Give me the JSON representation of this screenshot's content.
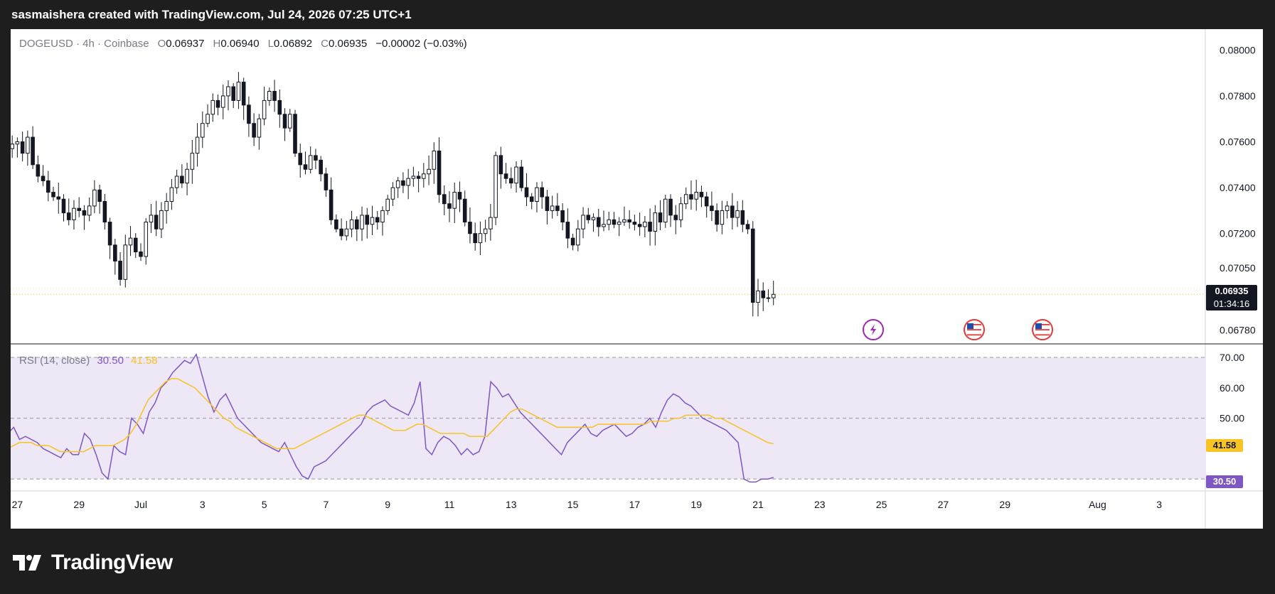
{
  "header": {
    "attribution": "sasmaishera created with TradingView.com, Jul 24, 2026 07:25 UTC+1"
  },
  "legend": {
    "symbol": "DOGEUSD · 4h · Coinbase",
    "open_label": "O",
    "open": "0.06937",
    "high_label": "H",
    "high": "0.06940",
    "low_label": "L",
    "low": "0.06892",
    "close_label": "C",
    "close": "0.06935",
    "change": "−0.00002 (−0.03%)"
  },
  "rsi_legend": {
    "label": "RSI (14, close)",
    "rsi": "30.50",
    "ma": "41.58"
  },
  "price_tag": {
    "price": "0.06935",
    "countdown": "01:34:16"
  },
  "rsi_tags": {
    "ma": "41.58",
    "rsi": "30.50"
  },
  "footer": {
    "brand": "TradingView",
    "logo_icon": "tradingview-logo-icon"
  },
  "event_icons": [
    "lightning-event-icon",
    "us-flag-event-icon",
    "us-flag-event-icon"
  ],
  "colors": {
    "candle": "#131722",
    "rsi_line": "#7e57c2",
    "rsi_ma": "#f7c325",
    "rsi_band": "#ede7f6",
    "price_tag_bg": "#131722",
    "rsi_ma_tag": "#f7c325",
    "rsi_tag": "#7e57c2"
  },
  "chart_data": [
    {
      "type": "candlestick",
      "price_axis": {
        "ticks": [
          "0.08000",
          "0.07800",
          "0.07600",
          "0.07400",
          "0.07200",
          "0.07050",
          "0.06780"
        ],
        "range": [
          0.0675,
          0.0806
        ]
      },
      "x_ticks": [
        "27",
        "29",
        "Jul",
        "3",
        "5",
        "7",
        "9",
        "11",
        "13",
        "15",
        "17",
        "19",
        "21",
        "23",
        "25",
        "27",
        "29",
        "Aug",
        "3"
      ],
      "x_tick_days": [
        -4,
        -2,
        0,
        2,
        4,
        6,
        8,
        10,
        12,
        14,
        16,
        18,
        20,
        22,
        24,
        26,
        28,
        31,
        33
      ],
      "last_price": 0.06935,
      "candles_per_day": 6,
      "start_day": -4.5,
      "closes": [
        0.0758,
        0.0757,
        0.0759,
        0.076,
        0.0755,
        0.0762,
        0.075,
        0.0745,
        0.0743,
        0.0738,
        0.0736,
        0.0735,
        0.0729,
        0.0726,
        0.0731,
        0.073,
        0.0728,
        0.0732,
        0.0739,
        0.0734,
        0.0725,
        0.0715,
        0.0708,
        0.07,
        0.0715,
        0.0718,
        0.0712,
        0.071,
        0.0725,
        0.0728,
        0.0722,
        0.073,
        0.0734,
        0.074,
        0.0745,
        0.0742,
        0.0748,
        0.0755,
        0.0762,
        0.0768,
        0.0772,
        0.0778,
        0.0775,
        0.078,
        0.0784,
        0.0778,
        0.0786,
        0.0776,
        0.0768,
        0.0762,
        0.077,
        0.0778,
        0.0782,
        0.0778,
        0.0772,
        0.0766,
        0.0772,
        0.0755,
        0.075,
        0.0748,
        0.0754,
        0.0752,
        0.0746,
        0.0739,
        0.0726,
        0.0722,
        0.0719,
        0.0722,
        0.0726,
        0.0722,
        0.0728,
        0.0724,
        0.0727,
        0.0725,
        0.073,
        0.0735,
        0.074,
        0.0743,
        0.0741,
        0.0744,
        0.0745,
        0.0744,
        0.0746,
        0.0748,
        0.0756,
        0.0737,
        0.0733,
        0.0731,
        0.0738,
        0.0735,
        0.0725,
        0.072,
        0.0716,
        0.072,
        0.0722,
        0.0727,
        0.0754,
        0.0746,
        0.0744,
        0.0742,
        0.0749,
        0.074,
        0.0736,
        0.0734,
        0.074,
        0.0736,
        0.073,
        0.0732,
        0.073,
        0.0725,
        0.0718,
        0.0715,
        0.0722,
        0.0728,
        0.0726,
        0.0727,
        0.0723,
        0.0724,
        0.0726,
        0.0724,
        0.0725,
        0.0726,
        0.0725,
        0.0724,
        0.0723,
        0.0725,
        0.0721,
        0.0729,
        0.0725,
        0.0735,
        0.0728,
        0.0726,
        0.0733,
        0.0737,
        0.0735,
        0.0738,
        0.0736,
        0.0732,
        0.073,
        0.0724,
        0.073,
        0.0732,
        0.0727,
        0.073,
        0.0724,
        0.0722,
        0.069,
        0.0695,
        0.0692,
        0.0692,
        0.06935
      ]
    },
    {
      "type": "line",
      "title": "RSI (14, close)",
      "y_ticks": [
        "70.00",
        "60.00",
        "50.00"
      ],
      "bands": [
        70,
        50,
        30
      ],
      "range": [
        27.0,
        73.5
      ],
      "series": [
        {
          "name": "RSI",
          "values": [
            46,
            45,
            47,
            43,
            44,
            43,
            42,
            40,
            39,
            38,
            37,
            40,
            38,
            38,
            45,
            43,
            38,
            32,
            30,
            41,
            39,
            38,
            50,
            48,
            45,
            52,
            55,
            60,
            62,
            65,
            67,
            69,
            68,
            71,
            64,
            57,
            52,
            56,
            58,
            54,
            50,
            48,
            46,
            44,
            42,
            41,
            40,
            39,
            42,
            38,
            34,
            31,
            30,
            34,
            35,
            36,
            38,
            40,
            42,
            44,
            46,
            48,
            52,
            54,
            55,
            56,
            54,
            53,
            52,
            51,
            55,
            62,
            40,
            38,
            42,
            44,
            43,
            41,
            38,
            40,
            38,
            39,
            44,
            62,
            60,
            57,
            58,
            55,
            52,
            50,
            48,
            46,
            44,
            42,
            40,
            38,
            42,
            44,
            46,
            48,
            45,
            44,
            46,
            47,
            48,
            46,
            44,
            45,
            47,
            48,
            50,
            47,
            52,
            56,
            58,
            57,
            55,
            54,
            52,
            50,
            49,
            48,
            47,
            46,
            44,
            42,
            30,
            29,
            29,
            30,
            30,
            30.5
          ]
        },
        {
          "name": "MA",
          "values": [
            38,
            40,
            41,
            42,
            42,
            42,
            41,
            41,
            41,
            40,
            39,
            39,
            39,
            39,
            39,
            40,
            41,
            41,
            41,
            41,
            42,
            43,
            45,
            48,
            52,
            56,
            58,
            60,
            62,
            63,
            63,
            62,
            61,
            60,
            58,
            56,
            54,
            52,
            50,
            49,
            47,
            46,
            45,
            44,
            43,
            42,
            41,
            40,
            40,
            40,
            40,
            41,
            42,
            43,
            44,
            45,
            46,
            47,
            48,
            49,
            50,
            51,
            51,
            50,
            49,
            48,
            47,
            46,
            46,
            46,
            47,
            48,
            48,
            47,
            46,
            45,
            45,
            45,
            45,
            45,
            44,
            44,
            44,
            44,
            46,
            48,
            50,
            52,
            53,
            53,
            52,
            51,
            50,
            49,
            48,
            47,
            47,
            47,
            47,
            47,
            47,
            47,
            48,
            48,
            48,
            48,
            48,
            48,
            48,
            48,
            48,
            49,
            49,
            49,
            49,
            50,
            50,
            51,
            51,
            51,
            51,
            51,
            50,
            50,
            49,
            48,
            47,
            46,
            45,
            44,
            43,
            42,
            41.58
          ]
        }
      ]
    }
  ]
}
